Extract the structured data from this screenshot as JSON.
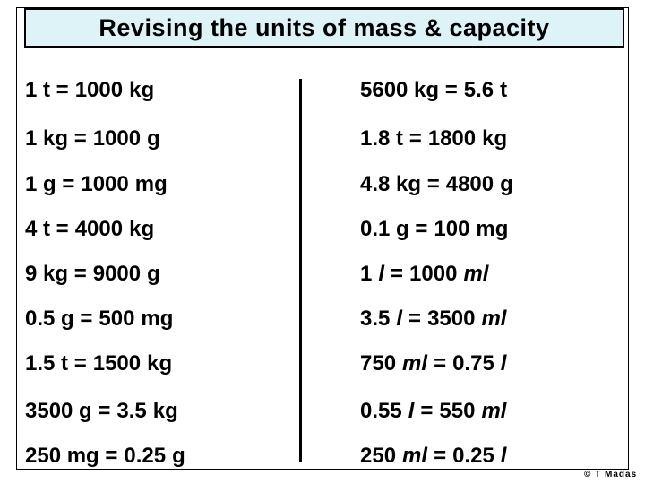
{
  "title": "Revising the units of mass & capacity",
  "left_rows": [
    [
      "1 t =",
      "1000",
      "kg"
    ],
    [
      "1 kg =",
      "1000",
      "g"
    ],
    [
      "1 g =",
      "1000",
      "mg"
    ],
    [
      "4 t =",
      "4000",
      "kg"
    ],
    [
      "9 kg =",
      "9000",
      "g"
    ],
    [
      "0.5 g =",
      "500",
      "mg"
    ],
    [
      "1.5 t =",
      "1500",
      "kg"
    ],
    [
      "3500 g =",
      "3.5",
      "kg"
    ],
    [
      "250 mg =",
      "0.25",
      "g"
    ]
  ],
  "right_rows": [
    [
      "5600 kg =",
      "5.6",
      "t"
    ],
    [
      "1.8 t =",
      "1800",
      "kg"
    ],
    [
      "4.8 kg =",
      "4800",
      "g"
    ],
    [
      "0.1 g =",
      "100",
      "mg"
    ],
    [
      "1",
      {
        "text": "l",
        "italic": true
      },
      "=",
      "1000",
      {
        "text": "ml",
        "italic": true
      }
    ],
    [
      "3.5",
      {
        "text": "l",
        "italic": true
      },
      "=",
      "3500",
      {
        "text": "ml",
        "italic": true
      }
    ],
    [
      "750",
      {
        "text": "ml",
        "italic": true
      },
      "=",
      "0.75",
      {
        "text": "l",
        "italic": true
      }
    ],
    [
      "0.55",
      {
        "text": "l",
        "italic": true
      },
      "=",
      "550",
      {
        "text": "ml",
        "italic": true
      }
    ],
    [
      "250",
      {
        "text": "ml",
        "italic": true
      },
      "=",
      "0.25",
      {
        "text": "l",
        "italic": true
      }
    ]
  ],
  "footer": "© T Madas"
}
